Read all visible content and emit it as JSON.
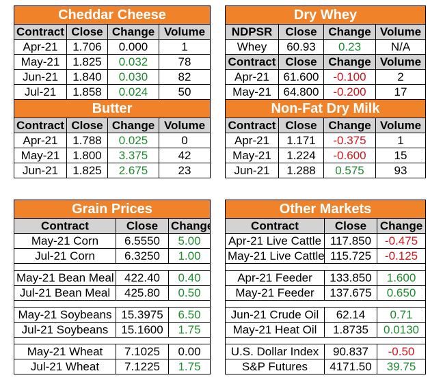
{
  "cheddar": {
    "title": "Cheddar Cheese",
    "headers": [
      "Contract",
      "Close",
      "Change",
      "Volume"
    ],
    "rows": [
      [
        "Apr-21",
        "1.706",
        "0.000",
        "1"
      ],
      [
        "May-21",
        "1.825",
        "0.032",
        "78"
      ],
      [
        "Jun-21",
        "1.840",
        "0.030",
        "82"
      ],
      [
        "Jul-21",
        "1.858",
        "0.024",
        "50"
      ]
    ]
  },
  "butter": {
    "title": "Butter",
    "headers": [
      "Contract",
      "Close",
      "Change",
      "Volume"
    ],
    "rows": [
      [
        "Apr-21",
        "1.788",
        "0.025",
        "0"
      ],
      [
        "May-21",
        "1.800",
        "3.375",
        "42"
      ],
      [
        "Jun-21",
        "1.825",
        "2.675",
        "23"
      ]
    ]
  },
  "dry_whey": {
    "title": "Dry Whey",
    "headers1": [
      "NDPSR",
      "Close",
      "Change",
      "Volume"
    ],
    "row1": [
      "Whey",
      "60.93",
      "0.23",
      "N/A"
    ],
    "headers2": [
      "Contract",
      "Close",
      "Change",
      "Volume"
    ],
    "rows": [
      [
        "Apr-21",
        "61.600",
        "-0.100",
        "2"
      ],
      [
        "May-21",
        "64.800",
        "-0.200",
        "17"
      ]
    ]
  },
  "nfdm": {
    "title": "Non-Fat Dry Milk",
    "headers": [
      "Contract",
      "Close",
      "Change",
      "Volume"
    ],
    "rows": [
      [
        "Apr-21",
        "1.171",
        "-0.375",
        "1"
      ],
      [
        "May-21",
        "1.224",
        "-0.600",
        "15"
      ],
      [
        "Jun-21",
        "1.288",
        "0.575",
        "93"
      ]
    ]
  },
  "grain": {
    "title": "Grain Prices",
    "headers": [
      "Contract",
      "Close",
      "Change"
    ],
    "groups": [
      [
        [
          "May-21 Corn",
          "6.5550",
          "5.00"
        ],
        [
          "Jul-21 Corn",
          "6.3250",
          "1.00"
        ]
      ],
      [
        [
          "May-21 Bean Meal",
          "422.40",
          "0.40"
        ],
        [
          "Jul-21 Bean Meal",
          "425.80",
          "0.50"
        ]
      ],
      [
        [
          "May-21 Soybeans",
          "15.3975",
          "6.50"
        ],
        [
          "Jul-21 Soybeans",
          "15.1600",
          "1.75"
        ]
      ],
      [
        [
          "May-21 Wheat",
          "7.1025",
          "0.00"
        ],
        [
          "Jul-21 Wheat",
          "7.1225",
          "1.75"
        ]
      ]
    ]
  },
  "other": {
    "title": "Other Markets",
    "headers": [
      "Contract",
      "Close",
      "Change"
    ],
    "groups": [
      [
        [
          "Apr-21 Live Cattle",
          "117.850",
          "-0.475"
        ],
        [
          "May-21 Live Cattle",
          "115.725",
          "-0.125"
        ]
      ],
      [
        [
          "Apr-21 Feeder",
          "133.850",
          "1.600"
        ],
        [
          "May-21 Feeder",
          "137.675",
          "0.650"
        ]
      ],
      [
        [
          "Jun-21 Crude Oil",
          "62.14",
          "0.71"
        ],
        [
          "May-21 Heat Oil",
          "1.8735",
          "0.0130"
        ]
      ],
      [
        [
          "U.S. Dollar Index",
          "90.837",
          "-0.50"
        ],
        [
          "S&P Futures",
          "4171.50",
          "39.75"
        ]
      ]
    ]
  },
  "colors": {
    "header_orange": "#f0822a",
    "positive": "#1e8a2e",
    "negative": "#d2151c",
    "column_header_gray": "#d3d3d3"
  }
}
